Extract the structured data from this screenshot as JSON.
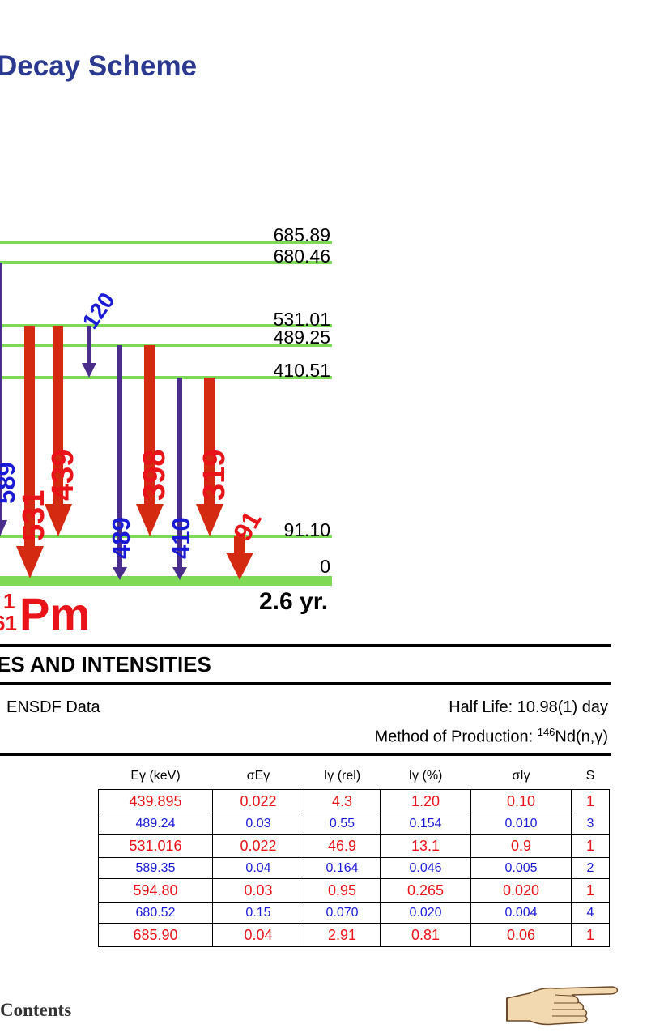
{
  "title": "Decay Scheme",
  "scheme": {
    "levels": [
      {
        "energy": 685.89,
        "label": "685.89"
      },
      {
        "energy": 680.46,
        "label": "680.46"
      },
      {
        "energy": 531.01,
        "label": "531.01"
      },
      {
        "energy": 489.25,
        "label": "489.25"
      },
      {
        "energy": 410.51,
        "label": "410.51"
      },
      {
        "energy": 91.1,
        "label": "91.10"
      },
      {
        "energy": 0,
        "label": "0"
      }
    ],
    "transitions": [
      {
        "label": "589",
        "color": "blue",
        "intensity": "weak"
      },
      {
        "label": "531",
        "color": "red",
        "intensity": "strong"
      },
      {
        "label": "439",
        "color": "red",
        "intensity": "strong"
      },
      {
        "label": "120",
        "color": "blue",
        "intensity": "weak"
      },
      {
        "label": "489",
        "color": "blue",
        "intensity": "weak"
      },
      {
        "label": "398",
        "color": "red",
        "intensity": "strong"
      },
      {
        "label": "410",
        "color": "blue",
        "intensity": "weak"
      },
      {
        "label": "319",
        "color": "red",
        "intensity": "strong"
      },
      {
        "label": "91",
        "color": "red",
        "intensity": "strong"
      }
    ],
    "nuclide_mass_fragment": "1",
    "nuclide_z_fragment": "61",
    "nuclide_symbol": "Pm",
    "ground_half_life": "2.6 yr.",
    "colors": {
      "level_line": "#7ed957",
      "red_arrow": "#d42a12",
      "blue_arrow": "#4b2e8c",
      "red_text": "#e8141a",
      "blue_text": "#1a1ad6"
    }
  },
  "section": {
    "title": "ES AND INTENSITIES",
    "data_source": "ENSDF Data",
    "half_life": "Half Life: 10.98(1) day",
    "production_prefix": "Method of Production: ",
    "production_mass": "146",
    "production_reaction": "Nd(n,γ)"
  },
  "table": {
    "headers": [
      "Eγ (keV)",
      "σEγ",
      "Iγ (rel)",
      "Iγ (%)",
      "σIγ",
      "S"
    ],
    "rows": [
      [
        "439.895",
        "0.022",
        "4.3",
        "1.20",
        "0.10",
        "1"
      ],
      [
        "489.24",
        "0.03",
        "0.55",
        "0.154",
        "0.010",
        "3"
      ],
      [
        "531.016",
        "0.022",
        "46.9",
        "13.1",
        "0.9",
        "1"
      ],
      [
        "589.35",
        "0.04",
        "0.164",
        "0.046",
        "0.005",
        "2"
      ],
      [
        "594.80",
        "0.03",
        "0.95",
        "0.265",
        "0.020",
        "1"
      ],
      [
        "680.52",
        "0.15",
        "0.070",
        "0.020",
        "0.004",
        "4"
      ],
      [
        "685.90",
        "0.04",
        "2.91",
        "0.81",
        "0.06",
        "1"
      ]
    ]
  },
  "footer": {
    "contents_link": "Contents",
    "next_icon": "pointing-hand-icon"
  }
}
